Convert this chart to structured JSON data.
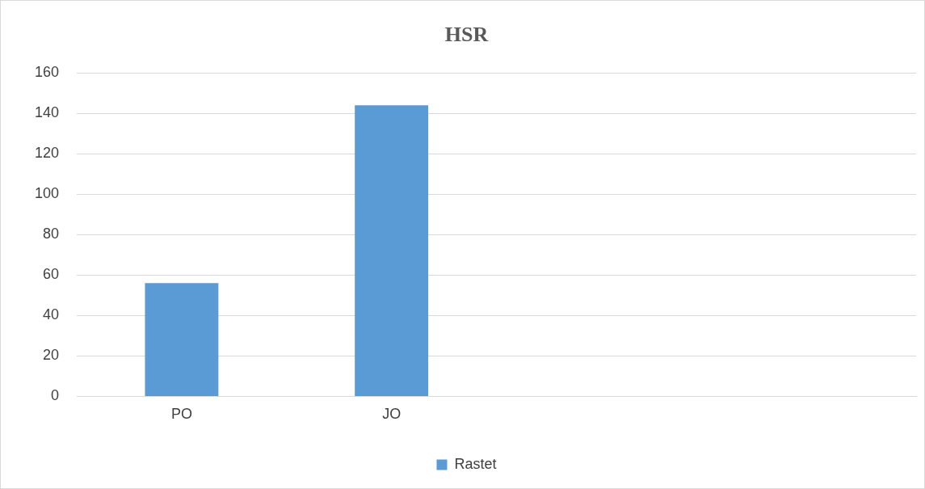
{
  "chart_data": {
    "type": "bar",
    "title": "HSR",
    "categories": [
      "PO",
      "JO",
      null,
      null
    ],
    "series": [
      {
        "name": "Rastet",
        "color": "#5b9bd5",
        "values": [
          56,
          144,
          null,
          null
        ]
      }
    ],
    "ylim": [
      0,
      160
    ],
    "yticks": [
      0,
      20,
      40,
      60,
      80,
      100,
      120,
      140,
      160
    ],
    "grid": "y",
    "legend": "bottom"
  }
}
